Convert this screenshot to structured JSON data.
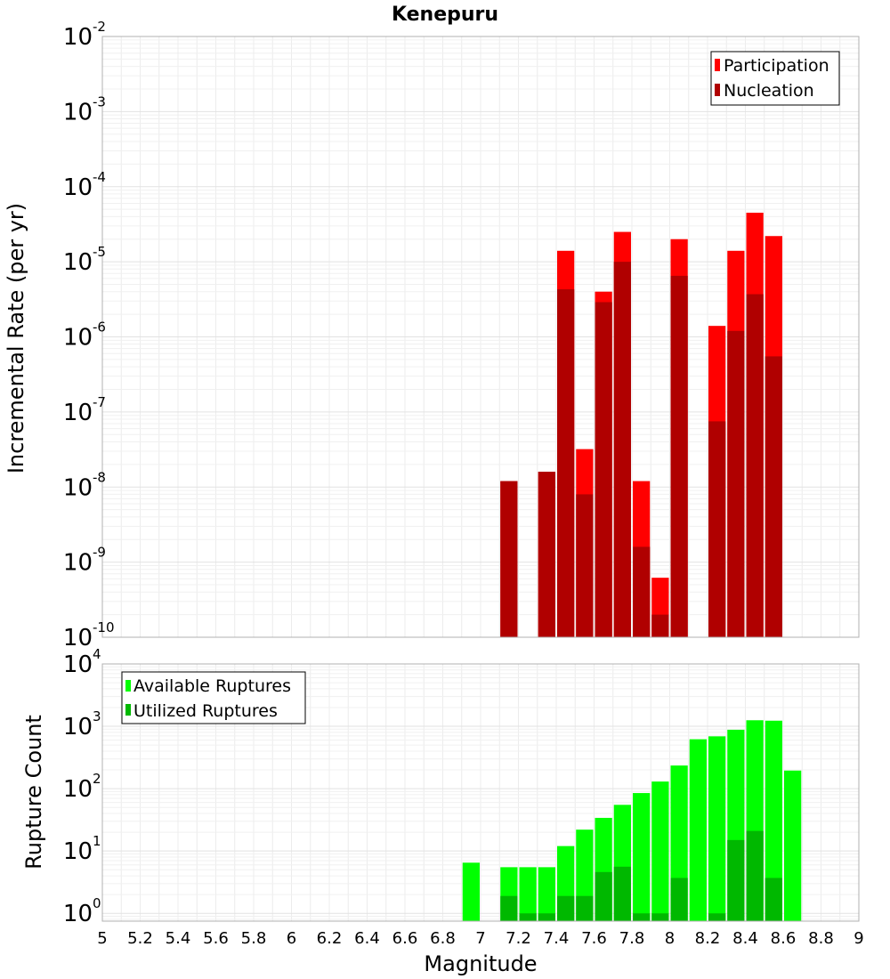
{
  "chart_data": [
    {
      "type": "bar",
      "title": "Kenepuru",
      "xlabel": "",
      "ylabel": "Incremental Rate (per yr)",
      "yscale": "log",
      "ylim": [
        1e-10,
        0.01
      ],
      "xlim": [
        5,
        9
      ],
      "grid": true,
      "legend_position": "top-right",
      "x": [
        7.15,
        7.35,
        7.45,
        7.55,
        7.65,
        7.75,
        7.85,
        7.95,
        8.05,
        8.25,
        8.35,
        8.45,
        8.55
      ],
      "series": [
        {
          "name": "Participation",
          "color": "#ff0000",
          "values": [
            1.2e-08,
            1.6e-08,
            1.4e-05,
            3.2e-08,
            4e-06,
            2.5e-05,
            1.2e-08,
            6.2e-10,
            2e-05,
            1.4e-06,
            1.4e-05,
            4.5e-05,
            2.2e-05
          ]
        },
        {
          "name": "Nucleation",
          "color": "#b00000",
          "values": [
            1.2e-08,
            1.6e-08,
            4.3e-06,
            8e-09,
            2.9e-06,
            1e-05,
            1.6e-09,
            2e-10,
            6.5e-06,
            7.5e-08,
            1.2e-06,
            3.7e-06,
            5.5e-07
          ]
        }
      ],
      "yticks": [
        {
          "base": "10",
          "exp": "-2",
          "value": 0.01
        },
        {
          "base": "10",
          "exp": "-3",
          "value": 0.001
        },
        {
          "base": "10",
          "exp": "-4",
          "value": 0.0001
        },
        {
          "base": "10",
          "exp": "-5",
          "value": 1e-05
        },
        {
          "base": "10",
          "exp": "-6",
          "value": 1e-06
        },
        {
          "base": "10",
          "exp": "-7",
          "value": 1e-07
        },
        {
          "base": "10",
          "exp": "-8",
          "value": 1e-08
        },
        {
          "base": "10",
          "exp": "-9",
          "value": 1e-09
        },
        {
          "base": "10",
          "exp": "-10",
          "value": 1e-10
        }
      ]
    },
    {
      "type": "bar",
      "title": "",
      "xlabel": "Magnitude",
      "ylabel": "Rupture Count",
      "yscale": "log",
      "ylim": [
        0.75,
        10000
      ],
      "xlim": [
        5,
        9
      ],
      "grid": true,
      "legend_position": "top-left",
      "x": [
        6.95,
        7.15,
        7.25,
        7.35,
        7.45,
        7.55,
        7.65,
        7.75,
        7.85,
        7.95,
        8.05,
        8.15,
        8.25,
        8.35,
        8.45,
        8.55,
        8.65
      ],
      "series": [
        {
          "name": "Available Ruptures",
          "color": "#00ff00",
          "values": [
            6.5,
            5.5,
            5.5,
            5.5,
            12,
            22,
            34,
            55,
            85,
            130,
            235,
            620,
            690,
            880,
            1250,
            1230,
            195
          ]
        },
        {
          "name": "Utilized Ruptures",
          "color": "#00b800",
          "values": [
            0,
            1.9,
            1,
            1,
            1.9,
            1.9,
            4.6,
            5.6,
            1,
            1,
            3.7,
            0,
            1,
            15,
            21,
            3.7,
            0
          ]
        }
      ],
      "yticks": [
        {
          "base": "10",
          "exp": "4",
          "value": 10000
        },
        {
          "base": "10",
          "exp": "3",
          "value": 1000
        },
        {
          "base": "10",
          "exp": "2",
          "value": 100
        },
        {
          "base": "10",
          "exp": "1",
          "value": 10
        },
        {
          "base": "10",
          "exp": "0",
          "value": 1
        }
      ],
      "xticks": [
        "5",
        "5.2",
        "5.4",
        "5.6",
        "5.8",
        "6",
        "6.2",
        "6.4",
        "6.6",
        "6.8",
        "7",
        "7.2",
        "7.4",
        "7.6",
        "7.8",
        "8",
        "8.2",
        "8.4",
        "8.6",
        "8.8",
        "9"
      ]
    }
  ]
}
